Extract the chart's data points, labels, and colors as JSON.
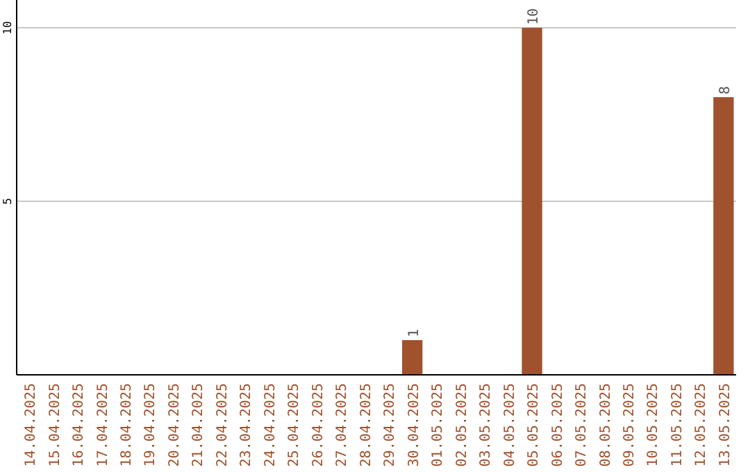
{
  "chart_data": {
    "type": "bar",
    "categories": [
      "14.04.2025",
      "15.04.2025",
      "16.04.2025",
      "17.04.2025",
      "18.04.2025",
      "19.04.2025",
      "20.04.2025",
      "21.04.2025",
      "22.04.2025",
      "23.04.2025",
      "24.04.2025",
      "25.04.2025",
      "26.04.2025",
      "27.04.2025",
      "28.04.2025",
      "29.04.2025",
      "30.04.2025",
      "01.05.2025",
      "02.05.2025",
      "03.05.2025",
      "04.05.2025",
      "05.05.2025",
      "06.05.2025",
      "07.05.2025",
      "08.05.2025",
      "09.05.2025",
      "10.05.2025",
      "11.05.2025",
      "12.05.2025",
      "13.05.2025"
    ],
    "values": [
      0,
      0,
      0,
      0,
      0,
      0,
      0,
      0,
      0,
      0,
      0,
      0,
      0,
      0,
      0,
      0,
      1,
      0,
      0,
      0,
      0,
      10,
      0,
      0,
      0,
      0,
      0,
      0,
      0,
      8
    ],
    "value_labels": [
      null,
      null,
      null,
      null,
      null,
      null,
      null,
      null,
      null,
      null,
      null,
      null,
      null,
      null,
      null,
      null,
      "1",
      null,
      null,
      null,
      null,
      "10",
      null,
      null,
      null,
      null,
      null,
      null,
      null,
      "8"
    ],
    "color": "#a0522d",
    "ylim": [
      0,
      10.8
    ],
    "yticks": [
      5,
      10
    ],
    "grid": "y"
  }
}
